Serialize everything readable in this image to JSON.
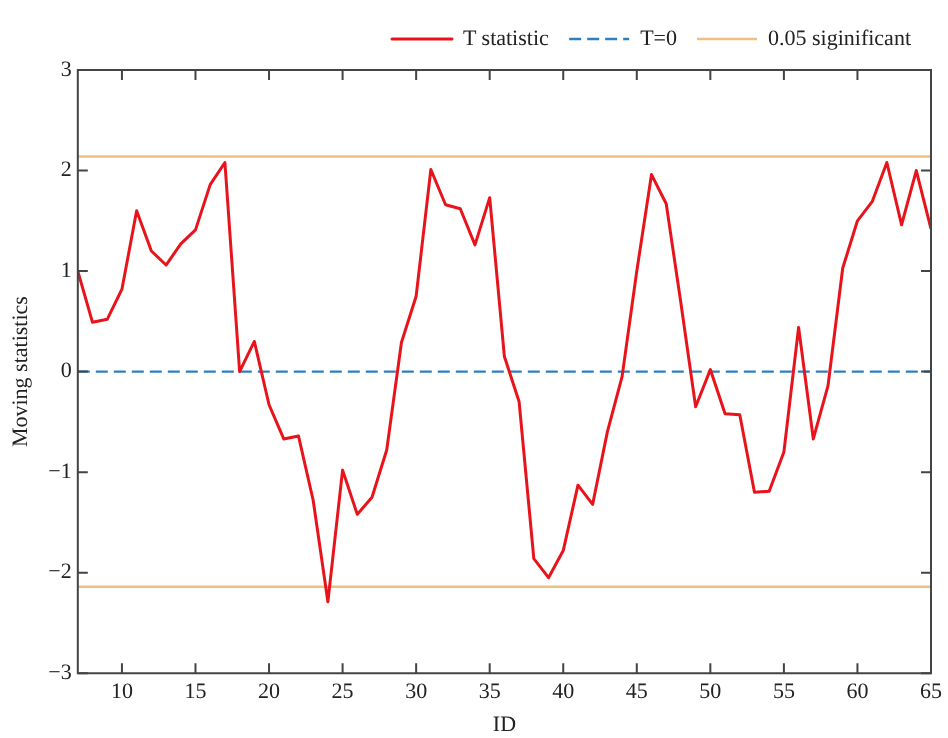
{
  "chart_data": {
    "type": "line",
    "xlabel": "ID",
    "ylabel": "Moving statistics",
    "x": [
      7,
      8,
      9,
      10,
      11,
      12,
      13,
      14,
      15,
      16,
      17,
      18,
      19,
      20,
      21,
      22,
      23,
      24,
      25,
      26,
      27,
      28,
      29,
      30,
      31,
      32,
      33,
      34,
      35,
      36,
      37,
      38,
      39,
      40,
      41,
      42,
      43,
      44,
      45,
      46,
      47,
      48,
      49,
      50,
      51,
      52,
      53,
      54,
      55,
      56,
      57,
      58,
      59,
      60,
      61,
      62,
      63,
      64,
      65
    ],
    "series": [
      {
        "name": "T statistic",
        "color": "#e8141c",
        "values": [
          1.0,
          0.49,
          0.52,
          0.82,
          1.6,
          1.2,
          1.06,
          1.27,
          1.41,
          1.86,
          2.08,
          0.0,
          0.3,
          -0.33,
          -0.67,
          -0.64,
          -1.28,
          -2.29,
          -0.98,
          -1.42,
          -1.25,
          -0.78,
          0.29,
          0.75,
          2.01,
          1.66,
          1.62,
          1.26,
          1.73,
          0.15,
          -0.3,
          -1.86,
          -2.05,
          -1.78,
          -1.13,
          -1.32,
          -0.6,
          -0.05,
          1.0,
          1.96,
          1.67,
          0.68,
          -0.35,
          0.02,
          -0.42,
          -0.43,
          -1.2,
          -1.19,
          -0.8,
          0.44,
          -0.67,
          -0.14,
          1.03,
          1.5,
          1.69,
          2.08,
          1.46,
          2.0,
          1.42
        ]
      }
    ],
    "ref_lines": [
      {
        "axis": "y",
        "value": 0,
        "label": "T=0",
        "color": "#2f7fbf",
        "line_style": "dashed"
      },
      {
        "axis": "y",
        "value": 2.14,
        "label": "0.05 siginificant",
        "color": "#f0c080",
        "line_style": "solid"
      },
      {
        "axis": "y",
        "value": -2.14,
        "label": null,
        "color": "#f0c080",
        "line_style": "solid"
      }
    ],
    "xlim": [
      7,
      65
    ],
    "xticks": [
      10,
      15,
      20,
      25,
      30,
      35,
      40,
      45,
      50,
      55,
      60,
      65
    ],
    "ylim": [
      -3,
      3
    ],
    "yticks": [
      -3,
      -2,
      -1,
      0,
      1,
      2,
      3
    ],
    "legend": "top right",
    "marker": "none",
    "line_style": "solid",
    "grid": false
  }
}
